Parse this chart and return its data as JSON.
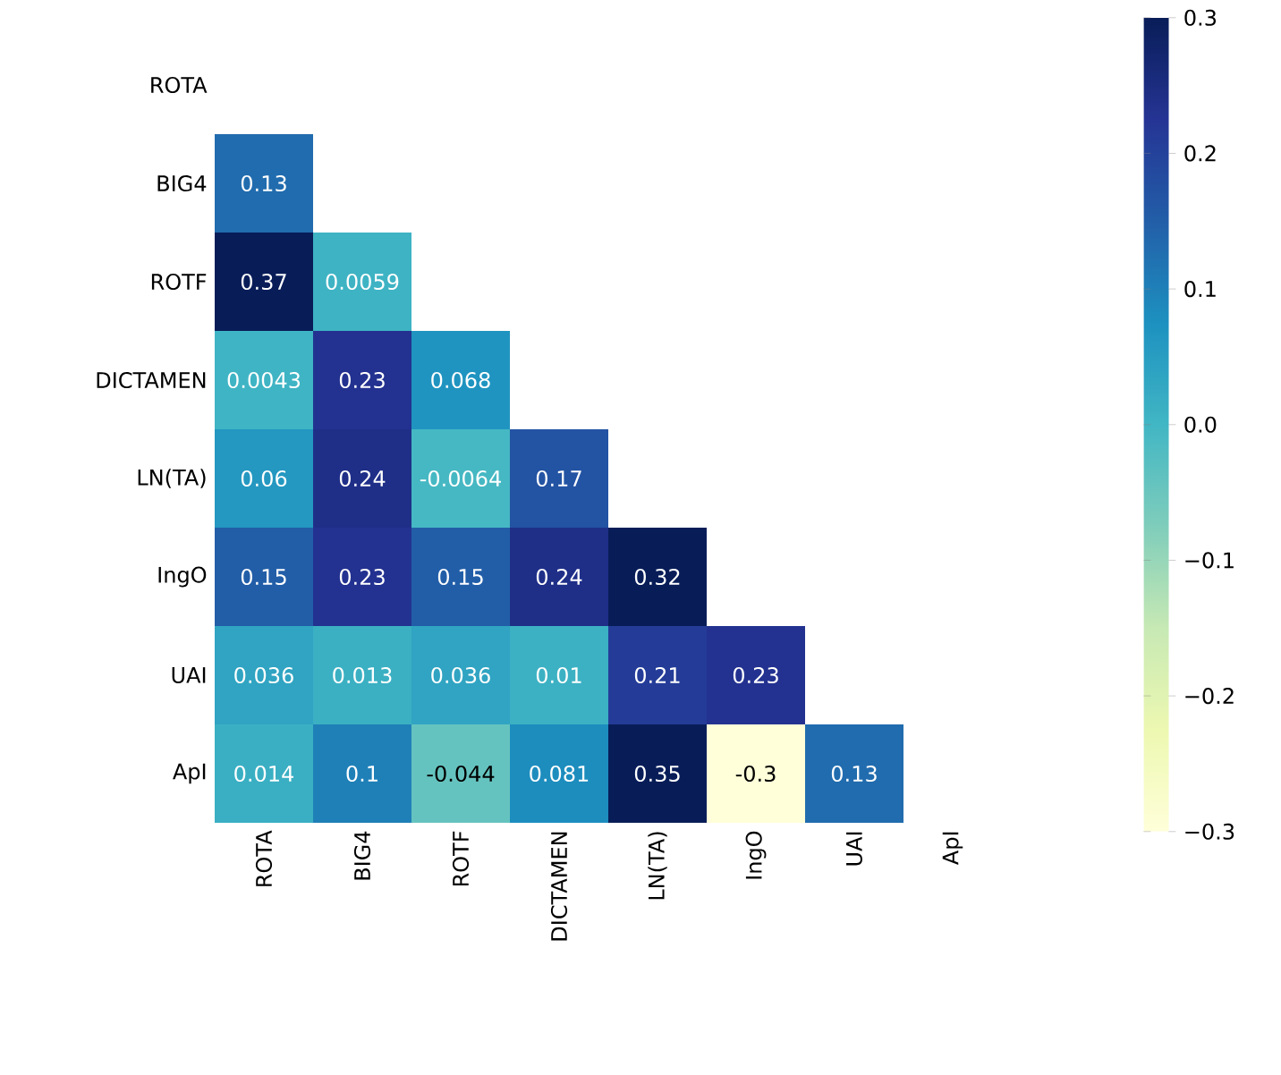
{
  "chart_data": {
    "type": "heatmap",
    "categories": [
      "ROTA",
      "BIG4",
      "ROTF",
      "DICTAMEN",
      "LN(TA)",
      "IngO",
      "UAI",
      "ApI"
    ],
    "y_categories": [
      "ROTA",
      "BIG4",
      "ROTF",
      "DICTAMEN",
      "LN(TA)",
      "IngO",
      "UAI",
      "ApI"
    ],
    "cells": [
      [
        null,
        null,
        null,
        null,
        null,
        null,
        null,
        null
      ],
      [
        0.13,
        null,
        null,
        null,
        null,
        null,
        null,
        null
      ],
      [
        0.37,
        0.0059,
        null,
        null,
        null,
        null,
        null,
        null
      ],
      [
        0.0043,
        0.23,
        0.068,
        null,
        null,
        null,
        null,
        null
      ],
      [
        0.06,
        0.24,
        -0.0064,
        0.17,
        null,
        null,
        null,
        null
      ],
      [
        0.15,
        0.23,
        0.15,
        0.24,
        0.32,
        null,
        null,
        null
      ],
      [
        0.036,
        0.013,
        0.036,
        0.01,
        0.21,
        0.23,
        null,
        null
      ],
      [
        0.014,
        0.1,
        -0.044,
        0.081,
        0.35,
        -0.3,
        0.13,
        null
      ]
    ],
    "data_labels": true,
    "clim": [
      -0.3,
      0.3
    ],
    "cticks": [
      {
        "value": -0.3,
        "label": "−0.3"
      },
      {
        "value": -0.2,
        "label": "−0.2"
      },
      {
        "value": -0.1,
        "label": "−0.1"
      },
      {
        "value": 0.0,
        "label": "0.0"
      },
      {
        "value": 0.1,
        "label": "0.1"
      },
      {
        "value": 0.2,
        "label": "0.2"
      },
      {
        "value": 0.3,
        "label": "0.3"
      }
    ]
  }
}
